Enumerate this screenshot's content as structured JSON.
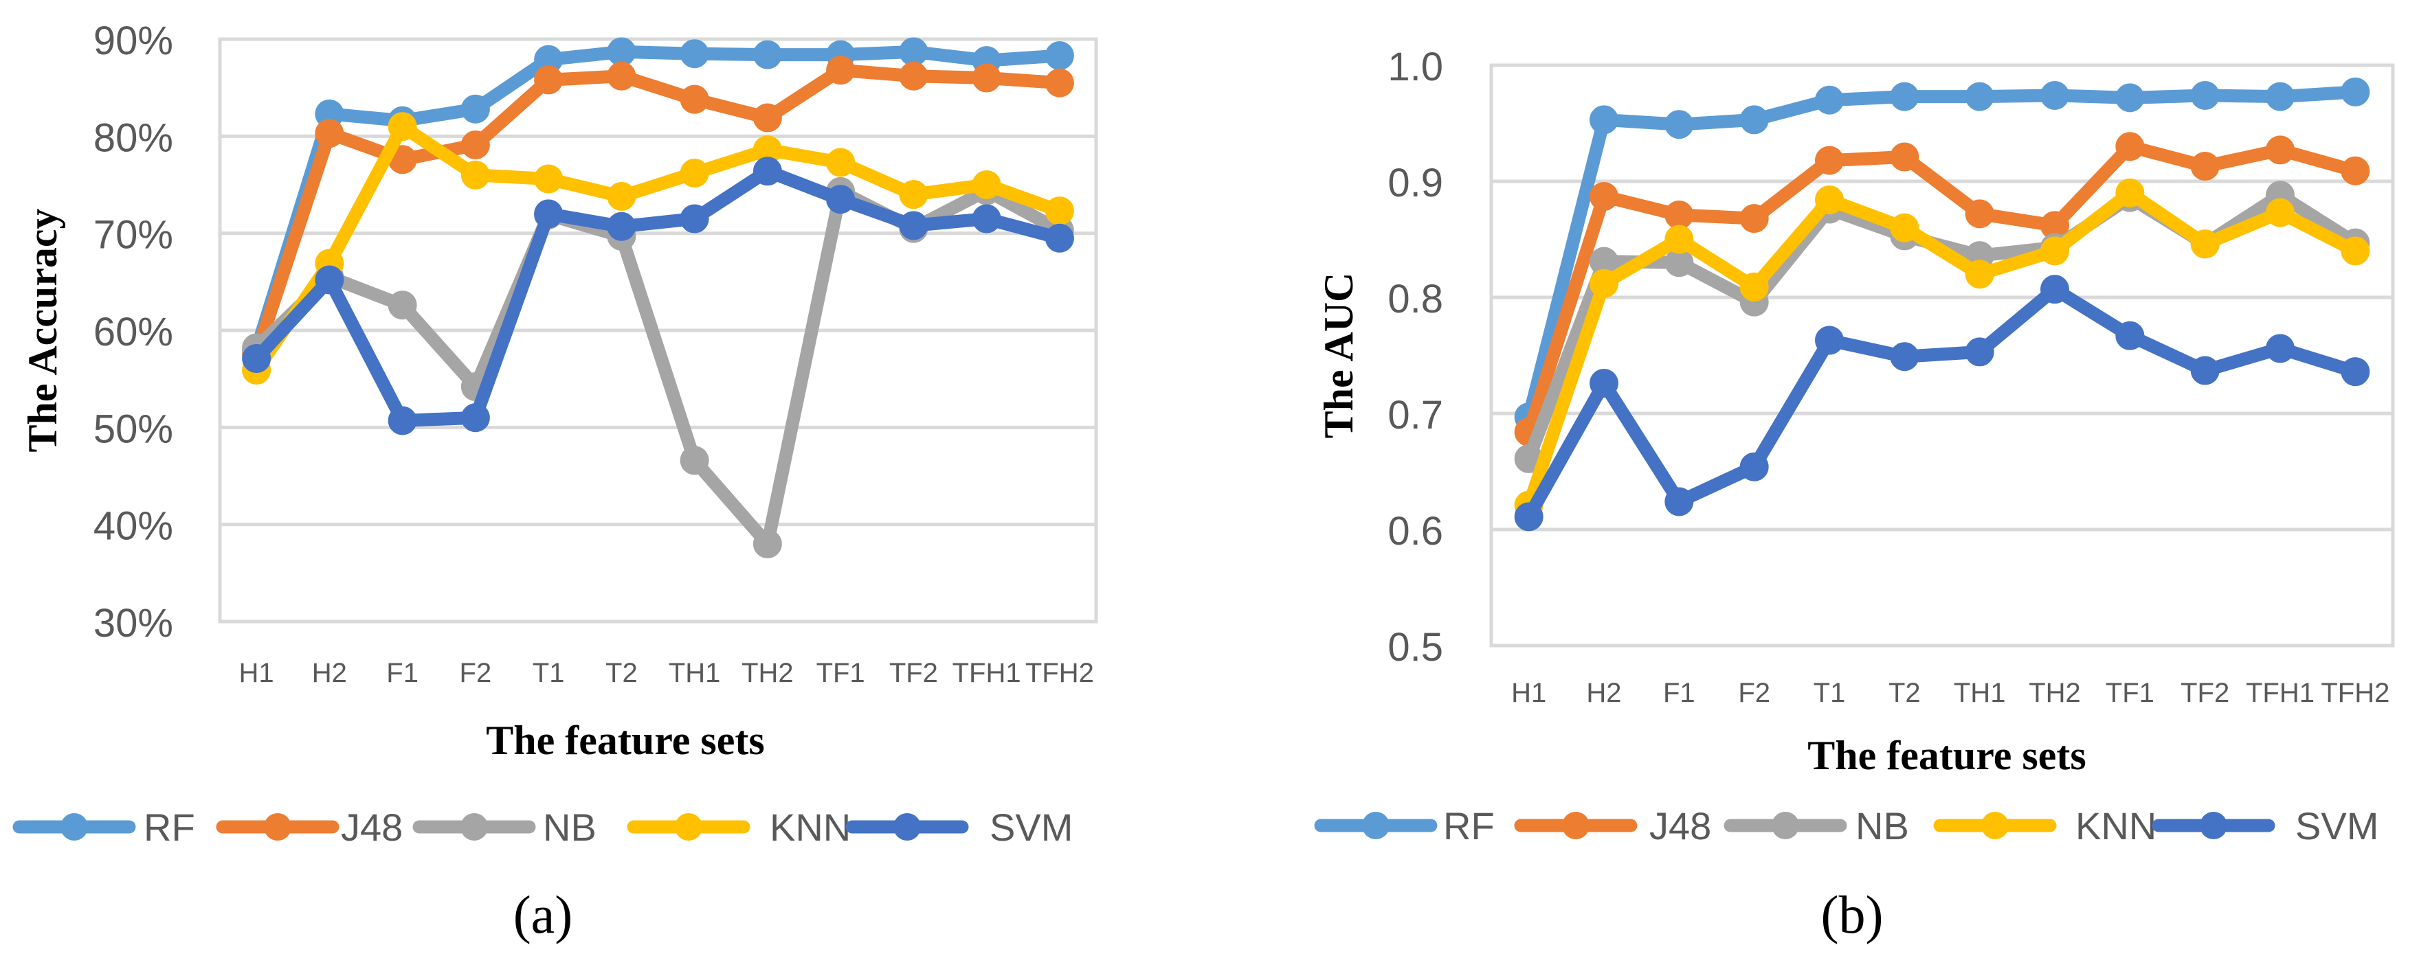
{
  "colors": {
    "RF": "#5b9bd5",
    "J48": "#ed7d31",
    "NB": "#a5a5a5",
    "KNN": "#ffc000",
    "SVM": "#4472c4",
    "grid": "#d9d9d9",
    "tick_text": "#595959"
  },
  "chart_data": [
    {
      "type": "line",
      "panel_label": "(a)",
      "title": "",
      "xlabel": "The feature sets",
      "ylabel": "The Accuracy",
      "categories": [
        "H1",
        "H2",
        "F1",
        "F2",
        "T1",
        "T2",
        "TH1",
        "TH2",
        "TF1",
        "TF2",
        "TFH1",
        "TFH2"
      ],
      "ylim": [
        30,
        90
      ],
      "yticks": [
        30,
        40,
        50,
        60,
        70,
        80,
        90
      ],
      "ytick_labels": [
        "30%",
        "40%",
        "50%",
        "60%",
        "70%",
        "80%",
        "90%"
      ],
      "grid": true,
      "legend_position": "bottom",
      "series": [
        {
          "name": "RF",
          "values": [
            58,
            82.3,
            81.6,
            82.8,
            87.9,
            88.7,
            88.5,
            88.4,
            88.4,
            88.7,
            87.8,
            88.3
          ]
        },
        {
          "name": "J48",
          "values": [
            57.5,
            80.3,
            77.6,
            79.1,
            85.8,
            86.2,
            83.8,
            81.9,
            86.8,
            86.2,
            86.0,
            85.5
          ]
        },
        {
          "name": "NB",
          "values": [
            58.2,
            65.5,
            62.6,
            54.2,
            71.9,
            69.7,
            46.6,
            38.0,
            74.3,
            70.5,
            74.4,
            70.3
          ]
        },
        {
          "name": "KNN",
          "values": [
            55.9,
            66.9,
            81.0,
            76.0,
            75.6,
            73.8,
            76.2,
            78.6,
            77.3,
            74.0,
            75.0,
            72.3
          ]
        },
        {
          "name": "SVM",
          "values": [
            57.1,
            65.2,
            50.7,
            51.0,
            72.0,
            70.7,
            71.5,
            76.4,
            73.5,
            70.8,
            71.5,
            69.5
          ]
        }
      ]
    },
    {
      "type": "line",
      "panel_label": "(b)",
      "title": "",
      "xlabel": "The feature sets",
      "ylabel": "The AUC",
      "categories": [
        "H1",
        "H2",
        "F1",
        "F2",
        "T1",
        "T2",
        "TH1",
        "TH2",
        "TF1",
        "TF2",
        "TFH1",
        "TFH2"
      ],
      "ylim": [
        0.5,
        1.0
      ],
      "yticks": [
        0.5,
        0.6,
        0.7,
        0.8,
        0.9,
        1.0
      ],
      "ytick_labels": [
        "0.5",
        "0.6",
        "0.7",
        "0.8",
        "0.9",
        "1.0"
      ],
      "grid": true,
      "legend_position": "bottom",
      "series": [
        {
          "name": "RF",
          "values": [
            0.697,
            0.953,
            0.949,
            0.953,
            0.97,
            0.973,
            0.973,
            0.974,
            0.972,
            0.974,
            0.973,
            0.977
          ]
        },
        {
          "name": "J48",
          "values": [
            0.684,
            0.887,
            0.871,
            0.868,
            0.918,
            0.921,
            0.872,
            0.862,
            0.93,
            0.913,
            0.927,
            0.909
          ]
        },
        {
          "name": "NB",
          "values": [
            0.661,
            0.831,
            0.83,
            0.796,
            0.876,
            0.853,
            0.836,
            0.843,
            0.886,
            0.846,
            0.888,
            0.847
          ]
        },
        {
          "name": "KNN",
          "values": [
            0.621,
            0.812,
            0.85,
            0.809,
            0.884,
            0.86,
            0.82,
            0.84,
            0.89,
            0.846,
            0.873,
            0.84
          ]
        },
        {
          "name": "SVM",
          "values": [
            0.611,
            0.726,
            0.624,
            0.654,
            0.763,
            0.749,
            0.753,
            0.807,
            0.767,
            0.737,
            0.756,
            0.736
          ]
        }
      ]
    }
  ]
}
